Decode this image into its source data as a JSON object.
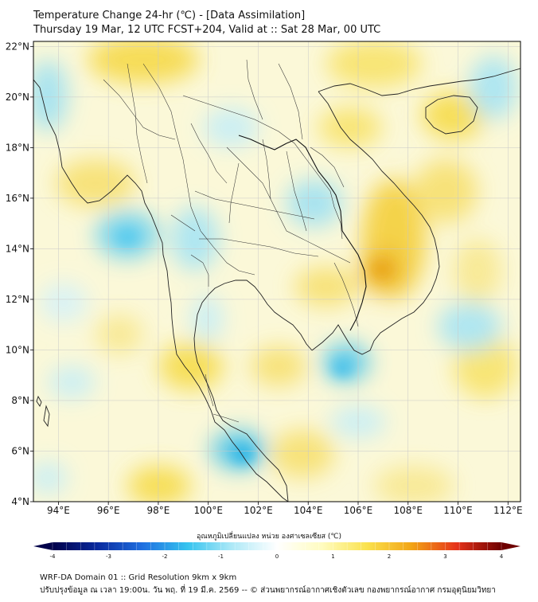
{
  "title": {
    "line1": "Temperature Change 24-hr (℃) - [Data Assimilation]",
    "line2": "Thursday 19 Mar, 12 UTC FCST+204, Valid at :: Sat 28 Mar, 00 UTC"
  },
  "map": {
    "lon_range": [
      93,
      112.5
    ],
    "lat_range": [
      4,
      22.2
    ],
    "lon_ticks": [
      {
        "value": 94,
        "label": "94°E"
      },
      {
        "value": 96,
        "label": "96°E"
      },
      {
        "value": 98,
        "label": "98°E"
      },
      {
        "value": 100,
        "label": "100°E"
      },
      {
        "value": 102,
        "label": "102°E"
      },
      {
        "value": 104,
        "label": "104°E"
      },
      {
        "value": 106,
        "label": "106°E"
      },
      {
        "value": 108,
        "label": "108°E"
      },
      {
        "value": 110,
        "label": "110°E"
      },
      {
        "value": 112,
        "label": "112°E"
      }
    ],
    "lat_ticks": [
      {
        "value": 4,
        "label": "4°N"
      },
      {
        "value": 6,
        "label": "6°N"
      },
      {
        "value": 8,
        "label": "8°N"
      },
      {
        "value": 10,
        "label": "10°N"
      },
      {
        "value": 12,
        "label": "12°N"
      },
      {
        "value": 14,
        "label": "14°N"
      },
      {
        "value": 16,
        "label": "16°N"
      },
      {
        "value": 18,
        "label": "18°N"
      },
      {
        "value": 20,
        "label": "20°N"
      },
      {
        "value": 22,
        "label": "22°N"
      }
    ]
  },
  "colorbar": {
    "label": "อุณหภูมิเปลี่ยนแปลง หน่วย องศาเซลเซียส (℃)",
    "range": [
      -4,
      4
    ],
    "ticks": [
      {
        "value": -4,
        "label": "-4"
      },
      {
        "value": -3,
        "label": "-3"
      },
      {
        "value": -2,
        "label": "-2"
      },
      {
        "value": -1,
        "label": "-1"
      },
      {
        "value": 0,
        "label": "0"
      },
      {
        "value": 1,
        "label": "1"
      },
      {
        "value": 2,
        "label": "2"
      },
      {
        "value": 3,
        "label": "3"
      },
      {
        "value": 4,
        "label": "4"
      }
    ],
    "colors": [
      "#00004a",
      "#0a2a9e",
      "#1f6fe0",
      "#35c3ef",
      "#aee9f7",
      "#ffffff",
      "#fffcc0",
      "#fae24e",
      "#f2a516",
      "#e6331a",
      "#6e0000"
    ]
  },
  "footer": {
    "line1": "WRF-DA Domain 01 :: Grid Resolution 9km x 9km",
    "line2": "ปรับปรุงข้อมูล ณ เวลา 19:00น. วัน พฤ. ที่ 19 มี.ค. 2569 -- © ส่วนพยากรณ์อากาศเชิงตัวเลข กองพยากรณ์อากาศ กรมอุตุนิยมวิทยา"
  }
}
